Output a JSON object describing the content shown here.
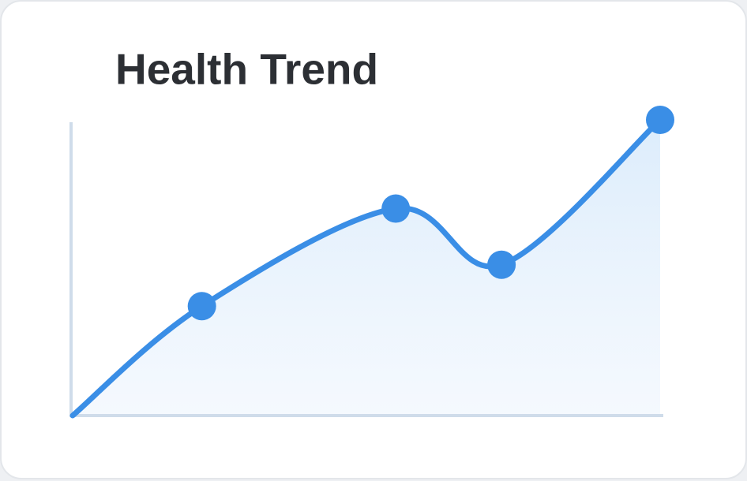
{
  "chart_data": {
    "type": "line",
    "title": "Health Trend",
    "x": [
      0,
      22,
      55,
      73,
      100
    ],
    "series": [
      {
        "color": "#3a8ee6",
        "values": [
          0,
          37,
          70,
          51,
          100
        ],
        "markers": [
          false,
          true,
          true,
          true,
          true
        ]
      }
    ],
    "xlim": [
      0,
      100
    ],
    "ylim": [
      0,
      100
    ],
    "area": true
  }
}
